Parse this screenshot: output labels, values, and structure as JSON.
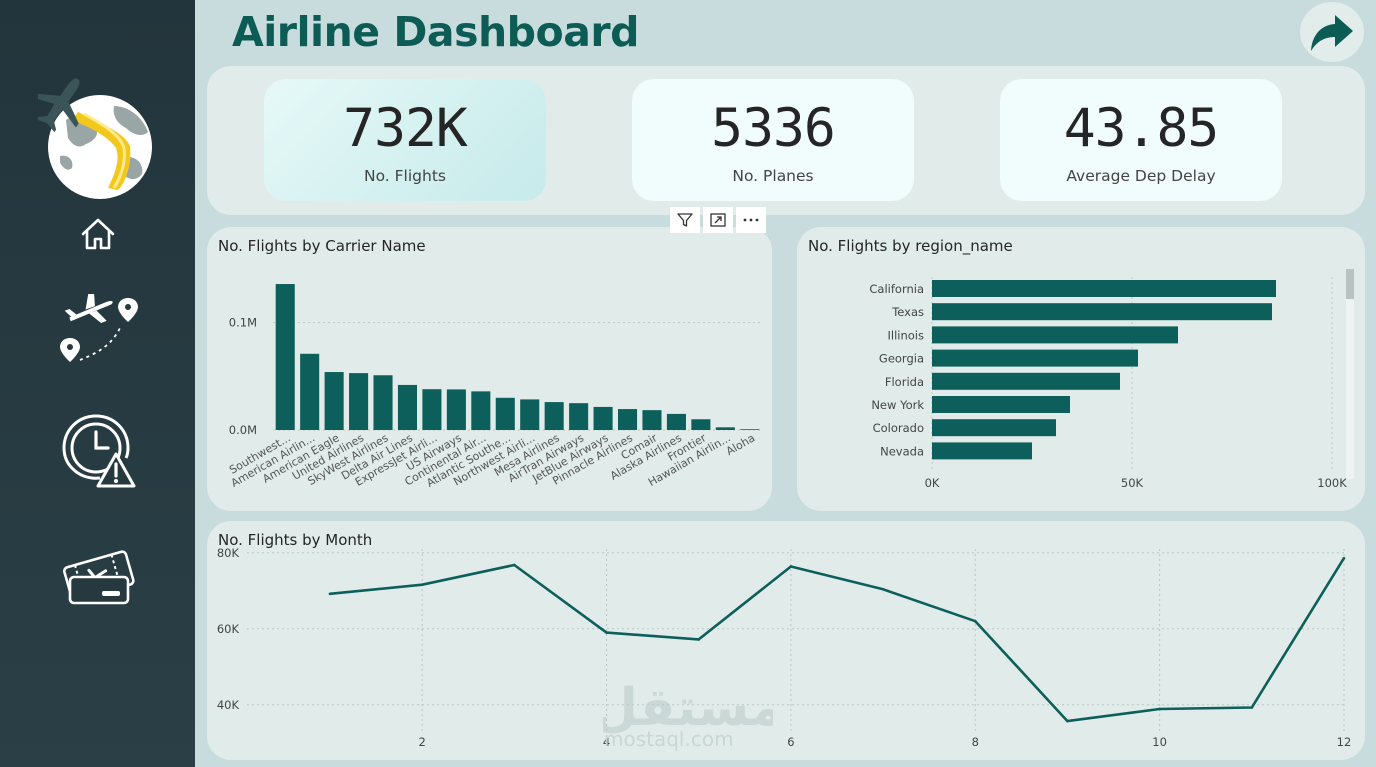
{
  "header": {
    "title": "Airline Dashboard"
  },
  "sidebar": {
    "items": [
      {
        "name": "home",
        "icon": "home-icon"
      },
      {
        "name": "routes",
        "icon": "plane-route-icon"
      },
      {
        "name": "delays",
        "icon": "clock-warning-icon"
      },
      {
        "name": "tickets",
        "icon": "ticket-icon"
      }
    ],
    "logo_icon": "globe-plane-logo"
  },
  "kpis": [
    {
      "value": "732K",
      "label": "No. Flights"
    },
    {
      "value": "5336",
      "label": "No. Planes"
    },
    {
      "value": "43.85",
      "label": "Average Dep Delay"
    }
  ],
  "toolbar": {
    "icons": [
      "filter-icon",
      "focus-mode-icon",
      "more-options-icon"
    ]
  },
  "colors": {
    "accent": "#0c5c55",
    "bar": "#0d5f5b",
    "sidebar": "#23353c",
    "panel": "#e1ecea"
  },
  "watermark": {
    "text": "مستقل",
    "url": "mostaql.com"
  },
  "chart_data": [
    {
      "id": "carrier",
      "type": "bar",
      "title": "No. Flights by Carrier Name",
      "categories": [
        "Southwest...",
        "American Airlin...",
        "American Eagle",
        "United Airlines",
        "SkyWest Airlines",
        "Delta Air Lines",
        "ExpressJet Airli...",
        "US Airways",
        "Continental Air...",
        "Atlantic Southe...",
        "Northwest Airli...",
        "Mesa Airlines",
        "AirTran Airways",
        "JetBlue Airways",
        "Pinnacle Airlines",
        "Comair",
        "Alaska Airlines",
        "Frontier",
        "Hawaiian Airlin...",
        "Aloha"
      ],
      "values": [
        136000,
        71000,
        54000,
        53000,
        51000,
        42000,
        38000,
        37800,
        36000,
        30000,
        28500,
        26000,
        25000,
        21500,
        19500,
        18500,
        15000,
        10000,
        2500,
        700
      ],
      "ylim": [
        0,
        150000
      ],
      "yticks": [
        {
          "value": 0,
          "label": "0.0M"
        },
        {
          "value": 100000,
          "label": "0.1M"
        }
      ],
      "grid": true
    },
    {
      "id": "region",
      "type": "bar",
      "orientation": "horizontal",
      "title": "No. Flights by region_name",
      "categories": [
        "California",
        "Texas",
        "Illinois",
        "Georgia",
        "Florida",
        "New York",
        "Colorado",
        "Nevada"
      ],
      "values": [
        86000,
        85000,
        61500,
        51500,
        47000,
        34500,
        31000,
        25000
      ],
      "xlim": [
        0,
        100000
      ],
      "xticks": [
        {
          "value": 0,
          "label": "0K"
        },
        {
          "value": 50000,
          "label": "50K"
        },
        {
          "value": 100000,
          "label": "100K"
        }
      ],
      "grid": true
    },
    {
      "id": "month",
      "type": "line",
      "title": "No. Flights by Month",
      "x": [
        1,
        2,
        3,
        4,
        5,
        6,
        7,
        8,
        9,
        10,
        11,
        12
      ],
      "values": [
        69200,
        71600,
        76800,
        59000,
        57200,
        76400,
        70400,
        62000,
        35700,
        38900,
        39300,
        78600
      ],
      "xlim": [
        0.1,
        12
      ],
      "ylim": [
        31000,
        81000
      ],
      "xticks": [
        {
          "value": 2,
          "label": "2"
        },
        {
          "value": 4,
          "label": "4"
        },
        {
          "value": 6,
          "label": "6"
        },
        {
          "value": 8,
          "label": "8"
        },
        {
          "value": 10,
          "label": "10"
        },
        {
          "value": 12,
          "label": "12"
        }
      ],
      "yticks": [
        {
          "value": 40000,
          "label": "40K"
        },
        {
          "value": 60000,
          "label": "60K"
        },
        {
          "value": 80000,
          "label": "80K"
        }
      ],
      "grid": true
    }
  ]
}
